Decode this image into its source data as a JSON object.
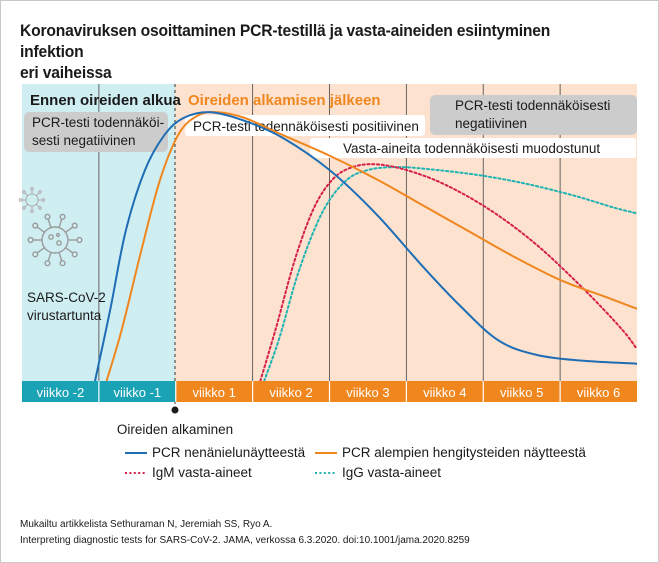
{
  "title_line1": "Koronaviruksen osoittaminen PCR-testillä ja vasta-aineiden esiintyminen infektion",
  "title_line2": "eri vaiheissa",
  "regions": {
    "before_label": "Ennen oireiden alkua",
    "after_label": "Oireiden alkamisen jälkeen",
    "before_color": "#cfeef2",
    "after_color": "#fde3cf"
  },
  "boxes": {
    "pcr_negative_before_line1": "PCR-testi todennäköi-",
    "pcr_negative_before_line2": "sesti negatiivinen",
    "pcr_positive": "PCR-testi todennäköisesti positiivinen",
    "antibodies_formed": "Vasta-aineita todennäköisesti muodostunut",
    "pcr_negative_after_line1": "PCR-testi todennäköisesti",
    "pcr_negative_after_line2": "negatiivinen"
  },
  "virus": {
    "icon": "coronavirus-icon",
    "label_line1": "SARS-CoV-2",
    "label_line2": "virustartunta"
  },
  "symptom_onset_label": "Oireiden alkaminen",
  "colors": {
    "pcr_nasopharyngeal": "#1f6eb5",
    "pcr_lower_respiratory": "#f0861e",
    "igm": "#d6204a",
    "igg": "#1fb3b3",
    "week_bar_before": "#1aa3b5",
    "week_bar_after": "#f0861e"
  },
  "chart_data": {
    "type": "line",
    "x_unit": "week relative to symptom onset",
    "categories": [
      "viikko -2",
      "viikko -1",
      "viikko 1",
      "viikko 2",
      "viikko 3",
      "viikko 4",
      "viikko 5",
      "viikko 6"
    ],
    "xlim": [
      -2,
      6
    ],
    "ylim": [
      0,
      100
    ],
    "series": [
      {
        "name": "PCR nenänielunäytteestä",
        "key": "pcr_nasopharyngeal",
        "style": "solid",
        "points": [
          [
            -1.05,
            0
          ],
          [
            -0.85,
            25
          ],
          [
            -0.65,
            52
          ],
          [
            -0.4,
            73
          ],
          [
            -0.15,
            85
          ],
          [
            0.1,
            91
          ],
          [
            0.45,
            93
          ],
          [
            0.9,
            90
          ],
          [
            1.4,
            84
          ],
          [
            2,
            73
          ],
          [
            2.6,
            58
          ],
          [
            3.2,
            40
          ],
          [
            3.7,
            26
          ],
          [
            4.2,
            14
          ],
          [
            4.7,
            9
          ],
          [
            5.3,
            7
          ],
          [
            6,
            6
          ]
        ]
      },
      {
        "name": "PCR alempien hengitysteiden näytteestä",
        "key": "pcr_lower_respiratory",
        "style": "solid",
        "points": [
          [
            -0.9,
            0
          ],
          [
            -0.7,
            18
          ],
          [
            -0.45,
            45
          ],
          [
            -0.2,
            70
          ],
          [
            0.05,
            86
          ],
          [
            0.3,
            92
          ],
          [
            0.55,
            93
          ],
          [
            0.9,
            91
          ],
          [
            1.4,
            85
          ],
          [
            2,
            78
          ],
          [
            2.6,
            70
          ],
          [
            3.2,
            61
          ],
          [
            3.8,
            52
          ],
          [
            4.4,
            43
          ],
          [
            5,
            35
          ],
          [
            5.6,
            29
          ],
          [
            6,
            25
          ]
        ]
      },
      {
        "name": "IgM vasta-aineet",
        "key": "igm",
        "style": "dotted",
        "points": [
          [
            1.1,
            0
          ],
          [
            1.3,
            18
          ],
          [
            1.55,
            42
          ],
          [
            1.8,
            60
          ],
          [
            2.05,
            70
          ],
          [
            2.3,
            74
          ],
          [
            2.6,
            75
          ],
          [
            3,
            73
          ],
          [
            3.5,
            68
          ],
          [
            4.1,
            59
          ],
          [
            4.7,
            47
          ],
          [
            5.3,
            32
          ],
          [
            5.8,
            18
          ],
          [
            6,
            11
          ]
        ]
      },
      {
        "name": "IgG vasta-aineet",
        "key": "igg",
        "style": "dotted",
        "points": [
          [
            1.15,
            0
          ],
          [
            1.35,
            15
          ],
          [
            1.6,
            38
          ],
          [
            1.9,
            58
          ],
          [
            2.2,
            69
          ],
          [
            2.5,
            73
          ],
          [
            2.9,
            74
          ],
          [
            3.4,
            73
          ],
          [
            4,
            71
          ],
          [
            4.6,
            68
          ],
          [
            5.2,
            64
          ],
          [
            5.7,
            60
          ],
          [
            6,
            58
          ]
        ]
      }
    ],
    "legend_placement": "bottom"
  },
  "source": {
    "line1": "Mukailtu artikkelista Sethuraman N, Jeremiah SS, Ryo A.",
    "line2": "Interpreting diagnostic tests for SARS-CoV-2. JAMA, verkossa 6.3.2020. doi:10.1001/jama.2020.8259"
  }
}
